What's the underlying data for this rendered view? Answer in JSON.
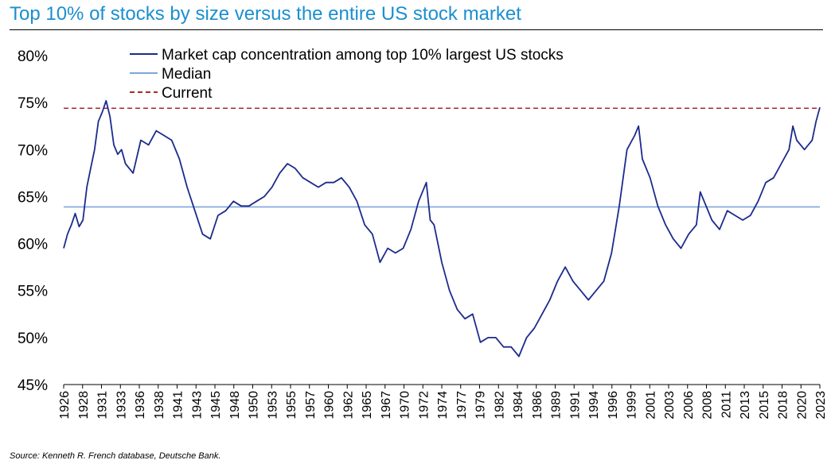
{
  "title": "Top 10% of stocks by size versus the entire US stock market",
  "source": "Source: Kenneth R. French database, Deutsche Bank.",
  "colors": {
    "title": "#1a8fd0",
    "series": "#1c2b8c",
    "median": "#7fa5db",
    "current": "#a52a2a"
  },
  "chart_data": {
    "type": "line",
    "title": "Top 10% of stocks by size versus the entire US stock market",
    "xlabel": "",
    "ylabel": "",
    "ylim": [
      45,
      80
    ],
    "yticks": [
      "45%",
      "50%",
      "55%",
      "60%",
      "65%",
      "70%",
      "75%",
      "80%"
    ],
    "xlim": [
      1926,
      2024
    ],
    "xticks": [
      "1926",
      "1928",
      "1931",
      "1933",
      "1936",
      "1938",
      "1941",
      "1943",
      "1945",
      "1948",
      "1950",
      "1953",
      "1955",
      "1957",
      "1960",
      "1962",
      "1965",
      "1967",
      "1970",
      "1972",
      "1974",
      "1977",
      "1979",
      "1982",
      "1984",
      "1986",
      "1989",
      "1991",
      "1994",
      "1996",
      "1999",
      "2001",
      "2003",
      "2006",
      "2008",
      "2011",
      "2013",
      "2015",
      "2018",
      "2020",
      "2023"
    ],
    "legend_position": "top-left",
    "grid": false,
    "series": [
      {
        "name": "Market cap concentration among top 10% largest US stocks",
        "style": "solid",
        "x": [
          1926.0,
          1926.5,
          1927.0,
          1927.5,
          1928.0,
          1928.5,
          1929.0,
          1929.5,
          1930.0,
          1930.5,
          1931.0,
          1931.5,
          1932.0,
          1932.5,
          1933.0,
          1933.5,
          1934.0,
          1935.0,
          1936.0,
          1937.0,
          1938.0,
          1939.0,
          1940.0,
          1941.0,
          1942.0,
          1943.0,
          1944.0,
          1945.0,
          1946.0,
          1947.0,
          1948.0,
          1949.0,
          1950.0,
          1951.0,
          1952.0,
          1953.0,
          1954.0,
          1955.0,
          1956.0,
          1957.0,
          1958.0,
          1959.0,
          1960.0,
          1961.0,
          1962.0,
          1963.0,
          1964.0,
          1965.0,
          1966.0,
          1967.0,
          1968.0,
          1969.0,
          1970.0,
          1971.0,
          1972.0,
          1973.0,
          1973.5,
          1974.0,
          1975.0,
          1976.0,
          1977.0,
          1978.0,
          1979.0,
          1980.0,
          1981.0,
          1982.0,
          1983.0,
          1984.0,
          1985.0,
          1986.0,
          1987.0,
          1988.0,
          1989.0,
          1990.0,
          1991.0,
          1992.0,
          1993.0,
          1994.0,
          1995.0,
          1996.0,
          1997.0,
          1998.0,
          1999.0,
          2000.0,
          2000.5,
          2001.0,
          2002.0,
          2003.0,
          2004.0,
          2005.0,
          2006.0,
          2007.0,
          2008.0,
          2008.5,
          2009.0,
          2010.0,
          2011.0,
          2012.0,
          2013.0,
          2014.0,
          2015.0,
          2016.0,
          2017.0,
          2018.0,
          2019.0,
          2020.0,
          2020.5,
          2021.0,
          2022.0,
          2023.0,
          2023.5,
          2024.0
        ],
        "y": [
          59.5,
          61.0,
          62.0,
          63.2,
          61.8,
          62.5,
          66.0,
          68.0,
          70.0,
          73.0,
          74.0,
          75.2,
          73.5,
          70.5,
          69.5,
          70.0,
          68.5,
          67.5,
          71.0,
          70.5,
          72.0,
          71.5,
          71.0,
          69.0,
          66.0,
          63.5,
          61.0,
          60.5,
          63.0,
          63.5,
          64.5,
          64.0,
          64.0,
          64.5,
          65.0,
          66.0,
          67.5,
          68.5,
          68.0,
          67.0,
          66.5,
          66.0,
          66.5,
          66.5,
          67.0,
          66.0,
          64.5,
          62.0,
          61.0,
          58.0,
          59.5,
          59.0,
          59.5,
          61.5,
          64.5,
          66.5,
          62.5,
          62.0,
          58.0,
          55.0,
          53.0,
          52.0,
          52.5,
          49.5,
          50.0,
          50.0,
          49.0,
          49.0,
          48.0,
          50.0,
          51.0,
          52.5,
          54.0,
          56.0,
          57.5,
          56.0,
          55.0,
          54.0,
          55.0,
          56.0,
          59.0,
          64.0,
          70.0,
          71.5,
          72.5,
          69.0,
          67.0,
          64.0,
          62.0,
          60.5,
          59.5,
          61.0,
          62.0,
          65.5,
          64.5,
          62.5,
          61.5,
          63.5,
          63.0,
          62.5,
          63.0,
          64.5,
          66.5,
          67.0,
          68.5,
          70.0,
          72.5,
          71.0,
          70.0,
          71.0,
          73.0,
          74.5
        ]
      },
      {
        "name": "Median",
        "style": "solid",
        "value": 63.9
      },
      {
        "name": "Current",
        "style": "dashed",
        "value": 74.4
      }
    ]
  }
}
